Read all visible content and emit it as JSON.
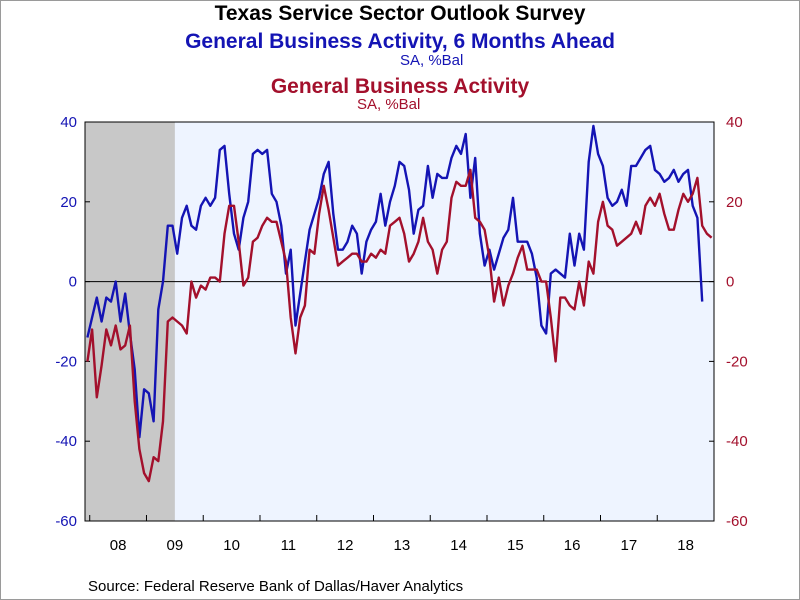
{
  "titles": {
    "main": "Texas Service Sector Outlook Survey",
    "series1": "General Business Activity, 6 Months Ahead",
    "series1_units": "SA, %Bal",
    "series2": "General Business Activity",
    "series2_units": "SA, %Bal"
  },
  "source": "Source:  Federal Reserve Bank of Dallas/Haver Analytics",
  "colors": {
    "series1": "#1414b4",
    "series2": "#a3102c",
    "recession": "#c8c8c8",
    "plot_bg": "#eef4ff"
  },
  "chart_data": {
    "type": "line",
    "title": "Texas Service Sector Outlook Survey",
    "x_start": "2007-12",
    "x_frequency": "monthly",
    "xtick_labels": [
      "08",
      "09",
      "10",
      "11",
      "12",
      "13",
      "14",
      "15",
      "16",
      "17",
      "18"
    ],
    "ylim_left": [
      -60,
      40
    ],
    "ylim_right": [
      -60,
      40
    ],
    "yticks_left": [
      "40",
      "20",
      "0",
      "-20",
      "-40",
      "-60"
    ],
    "yticks_right": [
      "40",
      "20",
      "0",
      "-20",
      "-40",
      "-60"
    ],
    "recession_shading": [
      "2007-12",
      "2009-06"
    ],
    "legend": "titles",
    "grid": false,
    "zero_line": true,
    "series": [
      {
        "name": "General Business Activity, 6 Months Ahead",
        "axis": "left",
        "values": [
          -14,
          -9,
          -4,
          -10,
          -4,
          -5,
          0,
          -10,
          -3,
          -13,
          -22,
          -39,
          -27,
          -28,
          -35,
          -7,
          0,
          14,
          14,
          7,
          16,
          19,
          14,
          13,
          19,
          21,
          19,
          21,
          33,
          34,
          22,
          12,
          8,
          16,
          20,
          32,
          33,
          32,
          33,
          22,
          20,
          14,
          2,
          8,
          -11,
          -3,
          5,
          13,
          17,
          21,
          27,
          30,
          17,
          8,
          8,
          10,
          14,
          12,
          2,
          10,
          13,
          15,
          22,
          14,
          20,
          24,
          30,
          29,
          23,
          12,
          18,
          19,
          29,
          21,
          27,
          26,
          26,
          31,
          34,
          32,
          37,
          21,
          31,
          12,
          4,
          8,
          3,
          7,
          11,
          13,
          21,
          10,
          10,
          10,
          7,
          1,
          -11,
          -13,
          2,
          3,
          2,
          1,
          12,
          4,
          12,
          8,
          30,
          39,
          32,
          29,
          21,
          19,
          20,
          23,
          19,
          29,
          29,
          31,
          33,
          34,
          28,
          27,
          25,
          26,
          28,
          25,
          27,
          28,
          19,
          16,
          -5
        ]
      },
      {
        "name": "General Business Activity",
        "axis": "right",
        "values": [
          -20,
          -12,
          -29,
          -21,
          -12,
          -16,
          -11,
          -17,
          -16,
          -11,
          -30,
          -42,
          -48,
          -50,
          -44,
          -45,
          -35,
          -10,
          -9,
          -10,
          -11,
          -13,
          0,
          -4,
          -1,
          -2,
          1,
          1,
          0,
          12,
          19,
          19,
          10,
          -1,
          1,
          10,
          11,
          14,
          16,
          15,
          15,
          10,
          5,
          -9,
          -18,
          -9,
          -6,
          8,
          7,
          17,
          24,
          18,
          11,
          4,
          5,
          6,
          7,
          7,
          5,
          5,
          7,
          6,
          8,
          7,
          14,
          15,
          16,
          12,
          5,
          7,
          10,
          16,
          10,
          8,
          2,
          8,
          10,
          21,
          25,
          24,
          24,
          28,
          16,
          15,
          13,
          6,
          -5,
          1,
          -6,
          -1,
          2,
          6,
          9,
          3,
          3,
          3,
          0,
          0,
          -9,
          -20,
          -4,
          -4,
          -6,
          -7,
          0,
          -6,
          5,
          2,
          15,
          20,
          14,
          13,
          9,
          10,
          11,
          12,
          15,
          12,
          19,
          21,
          19,
          22,
          17,
          13,
          13,
          18,
          22,
          20,
          22,
          26,
          14,
          12,
          11
        ]
      }
    ]
  }
}
